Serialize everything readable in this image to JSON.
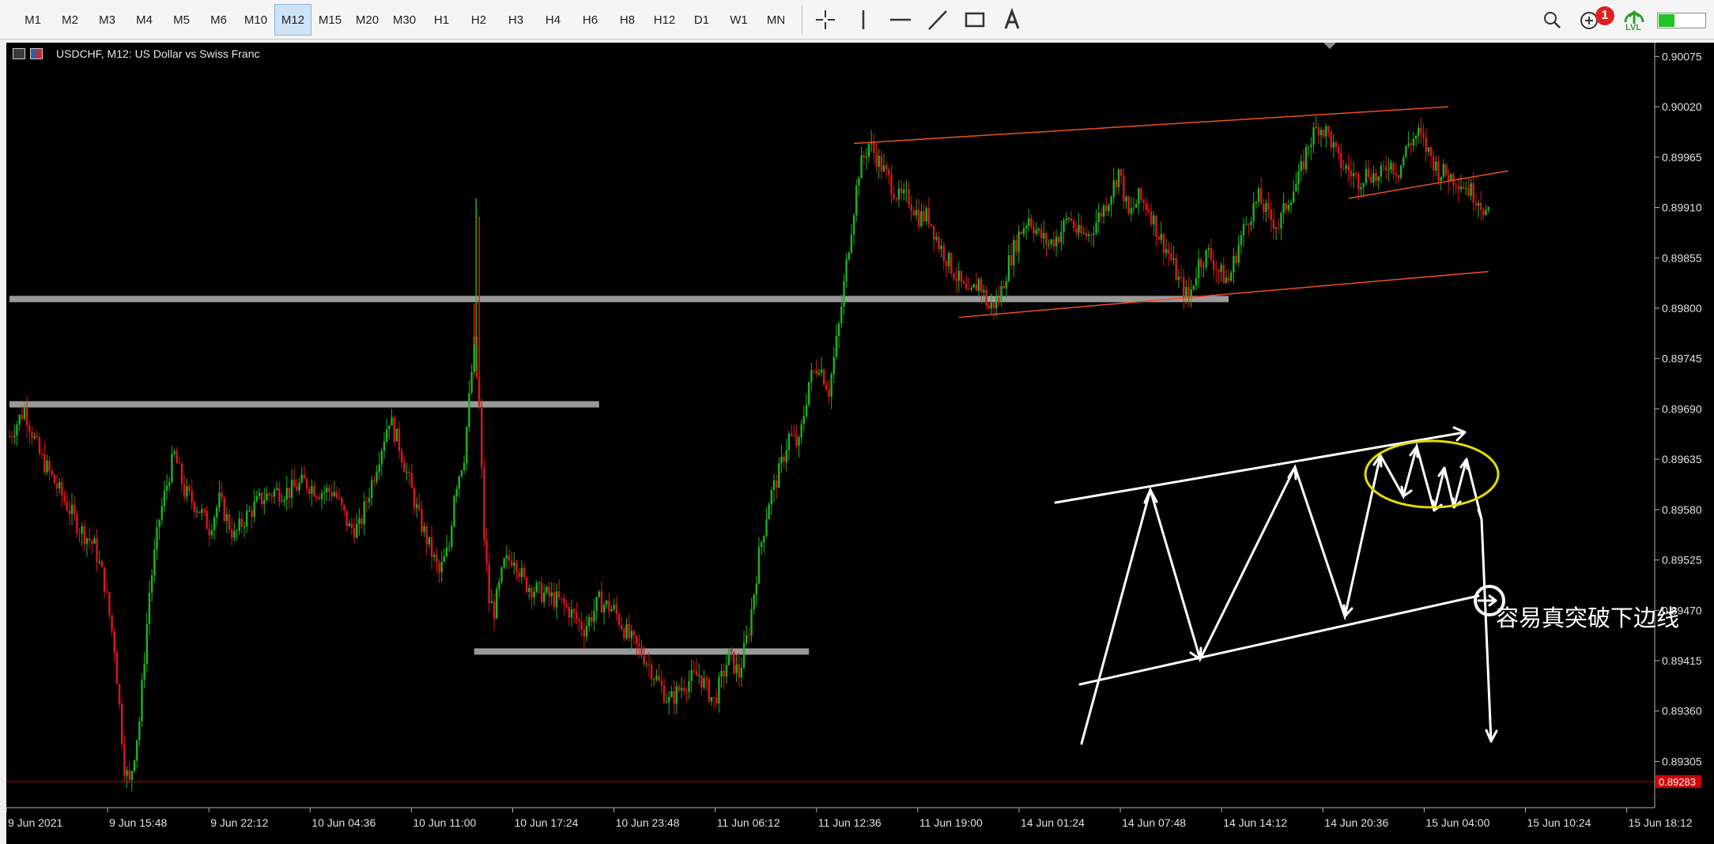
{
  "toolbar": {
    "timeframes": [
      "M1",
      "M2",
      "M3",
      "M4",
      "M5",
      "M6",
      "M10",
      "M12",
      "M15",
      "M20",
      "M30",
      "H1",
      "H2",
      "H3",
      "H4",
      "H6",
      "H8",
      "H12",
      "D1",
      "W1",
      "MN"
    ],
    "active_timeframe": "M12",
    "draw_tools": [
      "crosshair-icon",
      "vertical-line-icon",
      "horizontal-line-icon",
      "trend-line-icon",
      "rectangle-icon",
      "text-tool-icon"
    ],
    "search_icon": "search-icon",
    "notification_count": "1",
    "lvl_label": "LVL",
    "level_fraction": 0.35,
    "accent_color": "#22c322"
  },
  "chart_header": {
    "title": "USDCHF, M12:  US Dollar vs Swiss Franc"
  },
  "annotation": {
    "text": "容易真突破下边线"
  },
  "colors": {
    "bull": "#1fb31f",
    "bear": "#e0141e",
    "channel_lines": "#f0501e",
    "levels": "#9a9a9a",
    "annotation": "#ffffff",
    "highlight": "#e6dc00",
    "bid_line": "#d00000",
    "bid_label_bg": "#d00000"
  },
  "chart_data": {
    "type": "candlestick",
    "symbol": "USDCHF",
    "timeframe": "M12",
    "ylim": [
      0.8927,
      0.9009
    ],
    "y_ticks": [
      "0.90075",
      "0.90020",
      "0.89965",
      "0.89910",
      "0.89855",
      "0.89800",
      "0.89745",
      "0.89690",
      "0.89635",
      "0.89580",
      "0.89525",
      "0.89470",
      "0.89415",
      "0.89360",
      "0.89305"
    ],
    "x_ticks": [
      "9 Jun 2021",
      "9 Jun 15:48",
      "9 Jun 22:12",
      "10 Jun 04:36",
      "10 Jun 11:00",
      "10 Jun 17:24",
      "10 Jun 23:48",
      "11 Jun 06:12",
      "11 Jun 12:36",
      "11 Jun 19:00",
      "14 Jun 01:24",
      "14 Jun 07:48",
      "14 Jun 14:12",
      "14 Jun 20:36",
      "15 Jun 04:00",
      "15 Jun 10:24",
      "15 Jun 18:12"
    ],
    "bid_price": "0.89283",
    "price_path": [
      [
        0,
        0.8966
      ],
      [
        3,
        0.8969
      ],
      [
        6,
        0.8964
      ],
      [
        10,
        0.896
      ],
      [
        14,
        0.8956
      ],
      [
        17,
        0.8954
      ],
      [
        19,
        0.895
      ],
      [
        21,
        0.8943
      ],
      [
        23,
        0.893
      ],
      [
        24,
        0.8928
      ],
      [
        26,
        0.8935
      ],
      [
        28,
        0.8949
      ],
      [
        30,
        0.8957
      ],
      [
        32,
        0.8962
      ],
      [
        33,
        0.8964
      ],
      [
        35,
        0.896
      ],
      [
        38,
        0.8958
      ],
      [
        40,
        0.8956
      ],
      [
        42,
        0.8959
      ],
      [
        45,
        0.8955
      ],
      [
        47,
        0.8957
      ],
      [
        50,
        0.8959
      ],
      [
        53,
        0.896
      ],
      [
        56,
        0.896
      ],
      [
        59,
        0.8961
      ],
      [
        62,
        0.896
      ],
      [
        65,
        0.896
      ],
      [
        68,
        0.8956
      ],
      [
        70,
        0.8956
      ],
      [
        72,
        0.896
      ],
      [
        74,
        0.8964
      ],
      [
        76,
        0.8968
      ],
      [
        78,
        0.8965
      ],
      [
        80,
        0.8961
      ],
      [
        82,
        0.8957
      ],
      [
        84,
        0.8954
      ],
      [
        86,
        0.8951
      ],
      [
        88,
        0.8954
      ],
      [
        89,
        0.896
      ],
      [
        90,
        0.8962
      ],
      [
        91,
        0.8964
      ],
      [
        92,
        0.897
      ],
      [
        93,
        0.8976
      ],
      [
        94,
        0.8969
      ],
      [
        95,
        0.8955
      ],
      [
        96,
        0.8948
      ],
      [
        97,
        0.8947
      ],
      [
        99,
        0.8952
      ],
      [
        101,
        0.8953
      ],
      [
        103,
        0.895
      ],
      [
        106,
        0.8949
      ],
      [
        110,
        0.8948
      ],
      [
        112,
        0.8947
      ],
      [
        115,
        0.8945
      ],
      [
        118,
        0.8948
      ],
      [
        121,
        0.8947
      ],
      [
        124,
        0.8944
      ],
      [
        127,
        0.8942
      ],
      [
        130,
        0.8939
      ],
      [
        132,
        0.8937
      ],
      [
        135,
        0.8939
      ],
      [
        138,
        0.894
      ],
      [
        141,
        0.8937
      ],
      [
        144,
        0.8942
      ],
      [
        146,
        0.894
      ],
      [
        148,
        0.8945
      ],
      [
        150,
        0.8953
      ],
      [
        152,
        0.8959
      ],
      [
        154,
        0.8962
      ],
      [
        156,
        0.8966
      ],
      [
        158,
        0.8965
      ],
      [
        160,
        0.8972
      ],
      [
        162,
        0.8974
      ],
      [
        164,
        0.8971
      ],
      [
        166,
        0.8978
      ],
      [
        168,
        0.8987
      ],
      [
        170,
        0.8995
      ],
      [
        172,
        0.8998
      ],
      [
        174,
        0.8996
      ],
      [
        176,
        0.8994
      ],
      [
        178,
        0.8992
      ],
      [
        180,
        0.8992
      ],
      [
        182,
        0.899
      ],
      [
        184,
        0.899
      ],
      [
        186,
        0.8987
      ],
      [
        188,
        0.8985
      ],
      [
        190,
        0.8983
      ],
      [
        192,
        0.8981
      ],
      [
        194,
        0.8983
      ],
      [
        196,
        0.898
      ],
      [
        198,
        0.8981
      ],
      [
        200,
        0.8985
      ],
      [
        202,
        0.8988
      ],
      [
        204,
        0.899
      ],
      [
        206,
        0.8988
      ],
      [
        208,
        0.8987
      ],
      [
        210,
        0.8988
      ],
      [
        212,
        0.899
      ],
      [
        214,
        0.8988
      ],
      [
        216,
        0.8988
      ],
      [
        218,
        0.899
      ],
      [
        220,
        0.8992
      ],
      [
        222,
        0.8995
      ],
      [
        224,
        0.899
      ],
      [
        226,
        0.8992
      ],
      [
        228,
        0.8991
      ],
      [
        230,
        0.8988
      ],
      [
        232,
        0.8986
      ],
      [
        234,
        0.8983
      ],
      [
        236,
        0.8981
      ],
      [
        238,
        0.8985
      ],
      [
        240,
        0.8986
      ],
      [
        242,
        0.8984
      ],
      [
        244,
        0.8983
      ],
      [
        246,
        0.8987
      ],
      [
        248,
        0.899
      ],
      [
        250,
        0.8992
      ],
      [
        252,
        0.899
      ],
      [
        254,
        0.8989
      ],
      [
        256,
        0.8992
      ],
      [
        258,
        0.8994
      ],
      [
        260,
        0.8998
      ],
      [
        262,
        0.9
      ],
      [
        264,
        0.8999
      ],
      [
        266,
        0.8996
      ],
      [
        268,
        0.8995
      ],
      [
        270,
        0.8994
      ],
      [
        272,
        0.8995
      ],
      [
        274,
        0.8994
      ],
      [
        276,
        0.8996
      ],
      [
        278,
        0.8995
      ],
      [
        280,
        0.8998
      ],
      [
        282,
        0.8999
      ],
      [
        284,
        0.8997
      ],
      [
        286,
        0.8995
      ],
      [
        288,
        0.89945
      ],
      [
        290,
        0.8994
      ],
      [
        292,
        0.8993
      ],
      [
        294,
        0.8992
      ],
      [
        296,
        0.899
      ]
    ],
    "spikes": [
      [
        93,
        0.89805
      ],
      [
        93.4,
        0.8992
      ],
      [
        94,
        0.899
      ]
    ],
    "horizontal_levels": [
      {
        "price": 0.8981,
        "from_x": 0,
        "to_x": 244
      },
      {
        "price": 0.89695,
        "from_x": 0,
        "to_x": 118
      },
      {
        "price": 0.89425,
        "from_x": 93,
        "to_x": 160
      }
    ],
    "channel_lines": [
      [
        [
          169,
          0.8998
        ],
        [
          288,
          0.9002
        ]
      ],
      [
        [
          190,
          0.8979
        ],
        [
          296,
          0.8984
        ]
      ],
      [
        [
          268,
          0.8992
        ],
        [
          300,
          0.8995
        ]
      ]
    ]
  }
}
